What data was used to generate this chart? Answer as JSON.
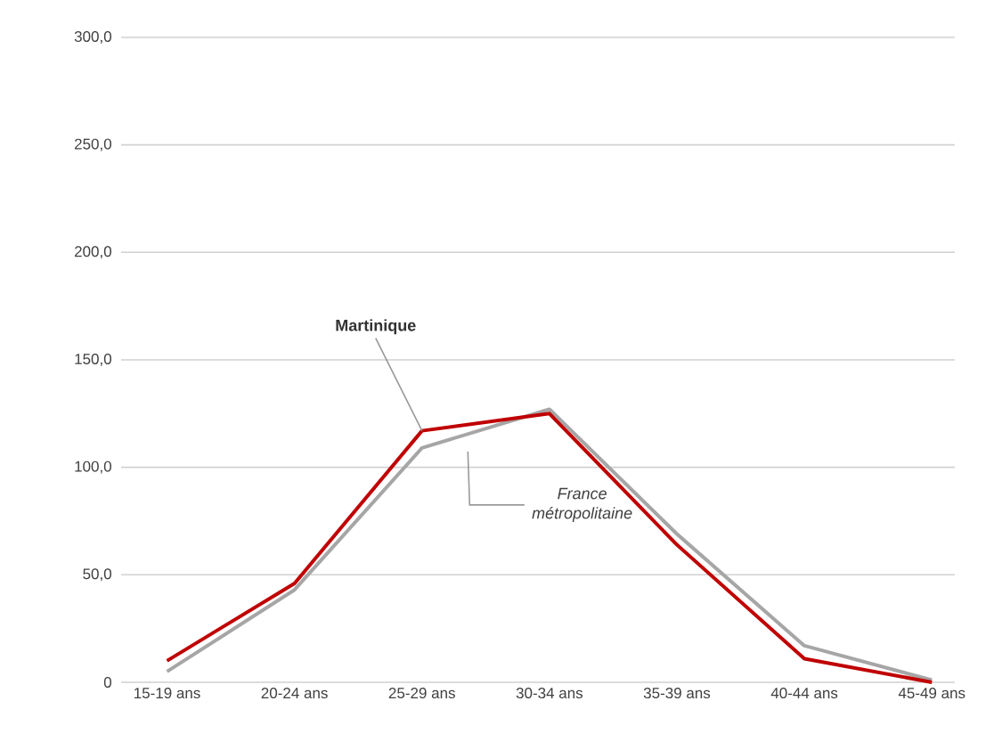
{
  "chart_data": {
    "type": "line",
    "categories": [
      "15-19 ans",
      "20-24 ans",
      "25-29 ans",
      "30-34 ans",
      "35-39 ans",
      "40-44 ans",
      "45-49 ans"
    ],
    "series": [
      {
        "name": "Martinique",
        "color": "#c00000",
        "values": [
          10,
          46,
          117,
          125,
          64,
          11,
          0
        ]
      },
      {
        "name": "France métropolitaine",
        "color": "#a6a6a6",
        "values": [
          5,
          43,
          109,
          127,
          69,
          17,
          1
        ]
      }
    ],
    "ylim": [
      0,
      300
    ],
    "yticks": [
      {
        "value": 0,
        "label": "0"
      },
      {
        "value": 50,
        "label": "50,0"
      },
      {
        "value": 100,
        "label": "100,0"
      },
      {
        "value": 150,
        "label": "150,0"
      },
      {
        "value": 200,
        "label": "200,0"
      },
      {
        "value": 250,
        "label": "250,0"
      },
      {
        "value": 300,
        "label": "300,0"
      }
    ],
    "grid": "y",
    "legend": false,
    "marker": "none",
    "line_style": "solid"
  }
}
